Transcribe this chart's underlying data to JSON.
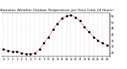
{
  "title": "Milwaukee Weather Outdoor Temperature per Hour (Last 24 Hours)",
  "hours": [
    0,
    1,
    2,
    3,
    4,
    5,
    6,
    7,
    8,
    9,
    10,
    11,
    12,
    13,
    14,
    15,
    16,
    17,
    18,
    19,
    20,
    21,
    22,
    23
  ],
  "temps": [
    28,
    27,
    26,
    26,
    25,
    24,
    24,
    25,
    28,
    33,
    38,
    44,
    49,
    53,
    55,
    56,
    54,
    51,
    46,
    42,
    38,
    35,
    33,
    31
  ],
  "line_color": "#cc0000",
  "dot_color": "#000000",
  "grid_color": "#888888",
  "bg_color": "#ffffff",
  "title_color": "#000000",
  "ylim": [
    22,
    58
  ],
  "ytick_values": [
    25,
    30,
    35,
    40,
    45,
    50,
    55
  ],
  "ytick_labels": [
    "25",
    "30",
    "35",
    "40",
    "45",
    "50",
    "55"
  ],
  "title_fontsize": 3.2,
  "tick_fontsize": 2.5,
  "line_width": 0.5,
  "dot_size": 1.2,
  "grid_lw": 0.25
}
